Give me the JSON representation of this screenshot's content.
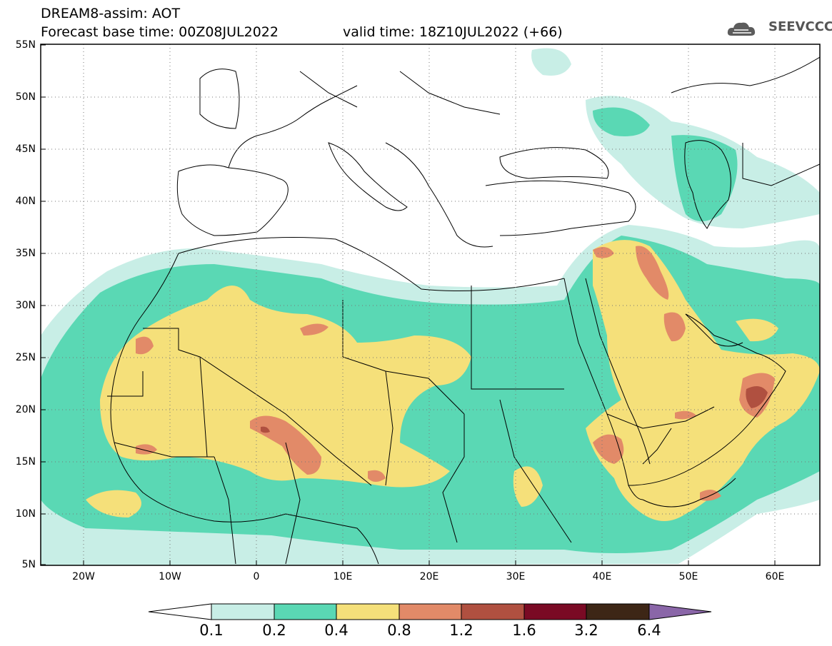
{
  "header": {
    "line1": "DREAM8-assim: AOT",
    "line2": "Forecast base time: 00Z08JUL2022",
    "valid": "valid time: 18Z10JUL2022 (+66)",
    "logo_text": "SEEVCCC"
  },
  "lat_labels": [
    "55N",
    "50N",
    "45N",
    "40N",
    "35N",
    "30N",
    "25N",
    "20N",
    "15N",
    "10N",
    "5N"
  ],
  "lon_labels": [
    "20W",
    "10W",
    "0",
    "10E",
    "20E",
    "30E",
    "40E",
    "50E",
    "60E"
  ],
  "colorbar": {
    "labels": [
      "0.1",
      "0.2",
      "0.4",
      "0.8",
      "1.2",
      "1.6",
      "3.2",
      "6.4"
    ],
    "colors": [
      "#ffffff",
      "#c8eee6",
      "#5ad8b4",
      "#f5e07a",
      "#e28a68",
      "#b05040",
      "#7a0a24",
      "#3d2616",
      "#8a66a8"
    ]
  },
  "fields": {
    "land_color": "#ffffff",
    "border_color": "#000000"
  }
}
